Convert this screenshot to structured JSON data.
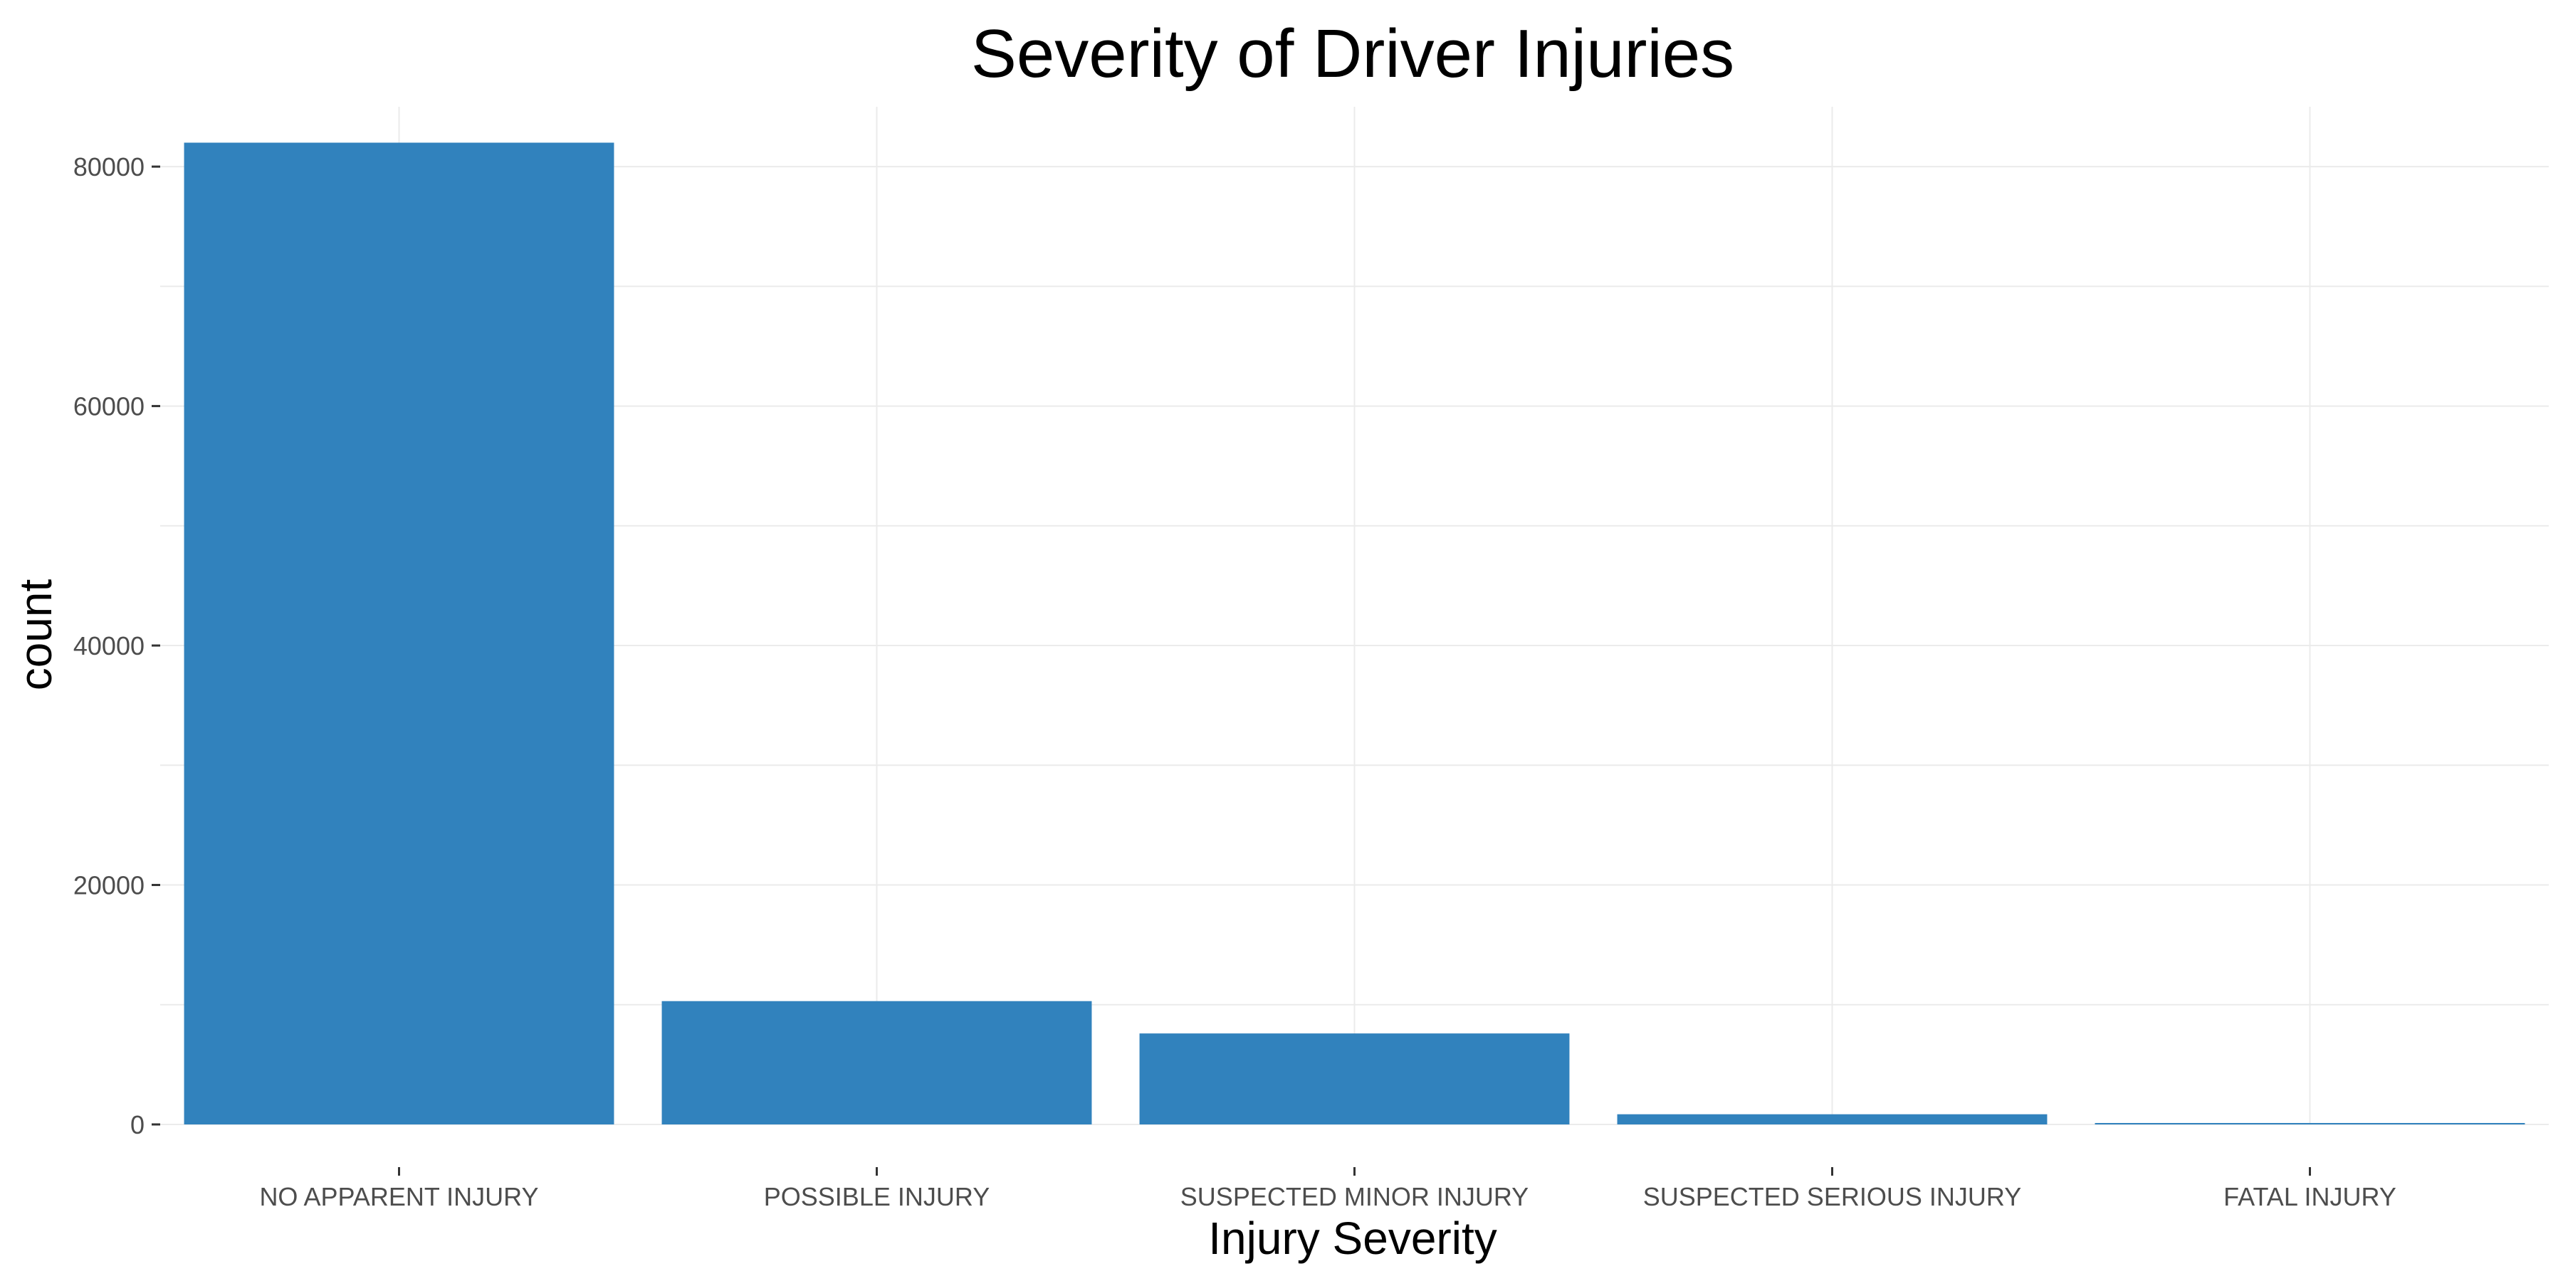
{
  "chart_data": {
    "type": "bar",
    "title": "Severity of Driver Injuries",
    "xlabel": "Injury Severity",
    "ylabel": "count",
    "categories": [
      "NO APPARENT INJURY",
      "POSSIBLE INJURY",
      "SUSPECTED MINOR INJURY",
      "SUSPECTED SERIOUS INJURY",
      "FATAL INJURY"
    ],
    "values": [
      82000,
      10300,
      7600,
      850,
      120
    ],
    "ylim": [
      0,
      85000
    ],
    "yticks": [
      0,
      20000,
      40000,
      60000,
      80000
    ],
    "ytick_labels": [
      "0",
      "20000",
      "40000",
      "60000",
      "80000"
    ],
    "grid": true,
    "legend": "none",
    "colors": {
      "bar": "#3182bd",
      "grid": "#ebebeb",
      "tick_text": "#4d4d4d"
    }
  }
}
